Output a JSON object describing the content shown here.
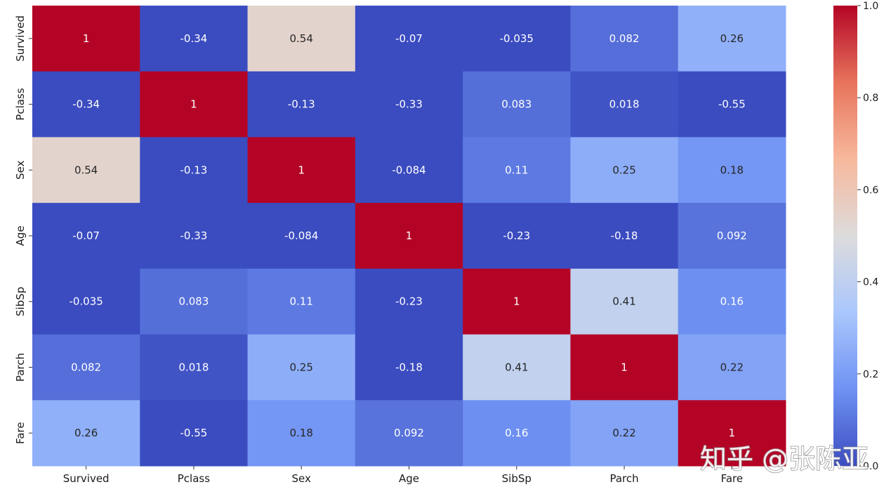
{
  "chart_data": {
    "type": "heatmap",
    "title": "",
    "xlabel": "",
    "ylabel": "",
    "colormap": "coolwarm",
    "x_labels": [
      "Survived",
      "Pclass",
      "Sex",
      "Age",
      "SibSp",
      "Parch",
      "Fare"
    ],
    "y_labels": [
      "Survived",
      "Pclass",
      "Sex",
      "Age",
      "SibSp",
      "Parch",
      "Fare"
    ],
    "values": [
      [
        1,
        -0.34,
        0.54,
        -0.07,
        -0.035,
        0.082,
        0.26
      ],
      [
        -0.34,
        1,
        -0.13,
        -0.33,
        0.083,
        0.018,
        -0.55
      ],
      [
        0.54,
        -0.13,
        1,
        -0.084,
        0.11,
        0.25,
        0.18
      ],
      [
        -0.07,
        -0.33,
        -0.084,
        1,
        -0.23,
        -0.18,
        0.092
      ],
      [
        -0.035,
        0.083,
        0.11,
        -0.23,
        1,
        0.41,
        0.16
      ],
      [
        0.082,
        0.018,
        0.25,
        -0.18,
        0.41,
        1,
        0.22
      ],
      [
        0.26,
        -0.55,
        0.18,
        0.092,
        0.16,
        0.22,
        1
      ]
    ],
    "annotations": [
      [
        "1",
        "-0.34",
        "0.54",
        "-0.07",
        "-0.035",
        "0.082",
        "0.26"
      ],
      [
        "-0.34",
        "1",
        "-0.13",
        "-0.33",
        "0.083",
        "0.018",
        "-0.55"
      ],
      [
        "0.54",
        "-0.13",
        "1",
        "-0.084",
        "0.11",
        "0.25",
        "0.18"
      ],
      [
        "-0.07",
        "-0.33",
        "-0.084",
        "1",
        "-0.23",
        "-0.18",
        "0.092"
      ],
      [
        "-0.035",
        "0.083",
        "0.11",
        "-0.23",
        "1",
        "0.41",
        "0.16"
      ],
      [
        "0.082",
        "0.018",
        "0.25",
        "-0.18",
        "0.41",
        "1",
        "0.22"
      ],
      [
        "0.26",
        "-0.55",
        "0.18",
        "0.092",
        "0.16",
        "0.22",
        "1"
      ]
    ],
    "colorbar": {
      "vmin": 0.0,
      "vmax": 1.0,
      "ticks": [
        0.0,
        0.2,
        0.4,
        0.6,
        0.8,
        1.0
      ],
      "tick_labels": [
        "0.0",
        "0.2",
        "0.4",
        "0.6",
        "0.8",
        "1.0"
      ]
    }
  },
  "watermark": "知乎 @张陈亚",
  "colors": {
    "coolwarm_stops": [
      "#3b4cc0",
      "#6f92f3",
      "#aac7fd",
      "#dddcdc",
      "#f7b89c",
      "#e7745b",
      "#b40426"
    ]
  }
}
